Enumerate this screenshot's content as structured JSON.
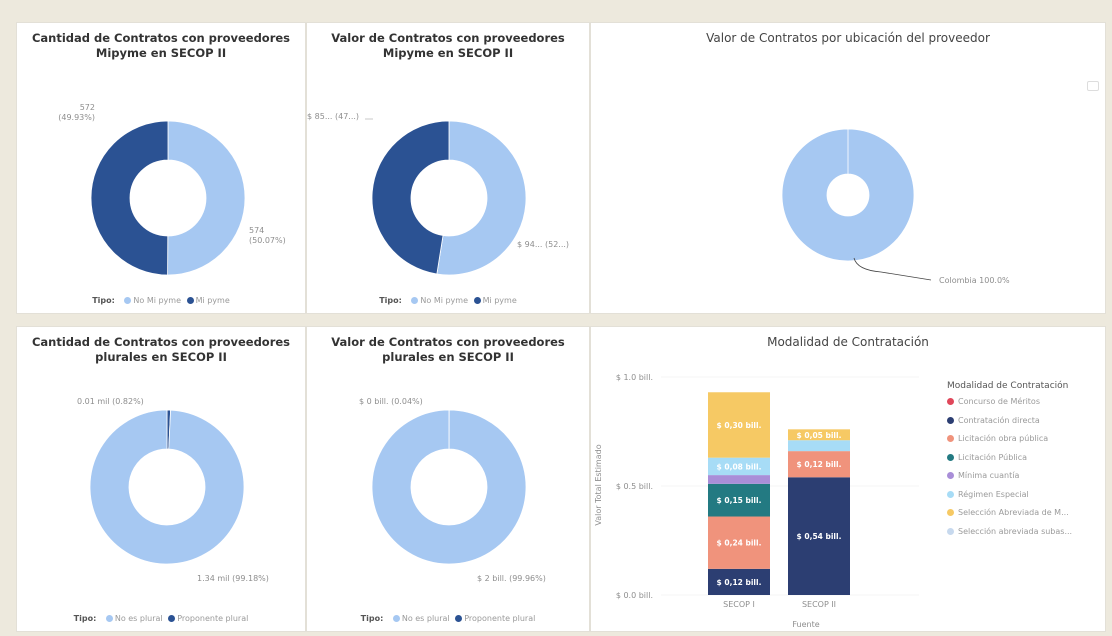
{
  "panels": {
    "mipyme_count": {
      "title": "Cantidad de Contratos con proveedores\nMipyme en SECOP II",
      "label_mi": "572\n(49.93%)",
      "label_no": "574\n(50.07%)",
      "legend_title": "Tipo:",
      "legend_items": [
        "No Mi pyme",
        "Mi pyme"
      ]
    },
    "mipyme_value": {
      "title": "Valor de Contratos con proveedores\nMipyme en SECOP II",
      "label_mi": "$ 85... (47...)",
      "label_no": "$ 94... (52...)",
      "legend_title": "Tipo:",
      "legend_items": [
        "No Mi pyme",
        "Mi pyme"
      ]
    },
    "ubicacion": {
      "title": "Valor de Contratos por ubicación del proveedor",
      "label": "Colombia 100.0%"
    },
    "plural_count": {
      "title": "Cantidad de Contratos con proveedores\nplurales en SECOP II",
      "label_plural": "0.01 mil (0.82%)",
      "label_no": "1.34 mil (99.18%)",
      "legend_title": "Tipo:",
      "legend_items": [
        "No es plural",
        "Proponente plural"
      ]
    },
    "plural_value": {
      "title": "Valor de Contratos con proveedores\nplurales en SECOP II",
      "label_plural": "$ 0 bill. (0.04%)",
      "label_no": "$ 2 bill. (99.96%)",
      "legend_title": "Tipo:",
      "legend_items": [
        "No es plural",
        "Proponente plural"
      ]
    },
    "modalidad": {
      "title": "Modalidad de Contratación",
      "ylabel": "Valor Total Estimado",
      "xlabel": "Fuente",
      "yticks": [
        "$ 1.0 bill.",
        "$ 0.5 bill.",
        "$ 0.0 bill."
      ],
      "legend_title": "Modalidad de Contratación",
      "legend_items": [
        "Concurso de Méritos",
        "Contratación directa",
        "Licitación obra pública",
        "Licitación Pública",
        "Mínima cuantía",
        "Régimen Especial",
        "Selección Abreviada de M...",
        "Selección abreviada subas..."
      ]
    }
  },
  "colors": {
    "no_mipyme": "#a6c8f2",
    "mipyme": "#2b5293",
    "concurso": "#e0475a",
    "directa": "#2c3e72",
    "obra": "#f0937c",
    "licitacion": "#237a82",
    "minima": "#a98ed8",
    "regimen": "#a7dcf6",
    "seleccion_m": "#f6c964",
    "seleccion_sub": "#c7d9ee"
  },
  "chart_data": [
    {
      "type": "pie",
      "title": "Cantidad de Contratos con proveedores Mipyme en SECOP II",
      "labels": [
        "No Mi pyme",
        "Mi pyme"
      ],
      "values": [
        574,
        572
      ],
      "percent": [
        50.07,
        49.93
      ]
    },
    {
      "type": "pie",
      "title": "Valor de Contratos con proveedores Mipyme en SECOP II",
      "labels": [
        "No Mi pyme",
        "Mi pyme"
      ],
      "percent": [
        52,
        47
      ]
    },
    {
      "type": "pie",
      "title": "Valor de Contratos por ubicación del proveedor",
      "labels": [
        "Colombia"
      ],
      "percent": [
        100.0
      ]
    },
    {
      "type": "pie",
      "title": "Cantidad de Contratos con proveedores plurales en SECOP II",
      "labels": [
        "No es plural",
        "Proponente plural"
      ],
      "values": [
        1.34,
        0.01
      ],
      "percent": [
        99.18,
        0.82
      ]
    },
    {
      "type": "pie",
      "title": "Valor de Contratos con proveedores plurales en SECOP II",
      "labels": [
        "No es plural",
        "Proponente plural"
      ],
      "values": [
        2,
        0
      ],
      "percent": [
        99.96,
        0.04
      ]
    },
    {
      "type": "bar",
      "stacked": true,
      "title": "Modalidad de Contratación",
      "xlabel": "Fuente",
      "ylabel": "Valor Total Estimado",
      "categories": [
        "SECOP I",
        "SECOP II"
      ],
      "ylim": [
        0,
        1.0
      ],
      "series": [
        {
          "name": "Contratación directa",
          "color": "#2c3e72",
          "values": [
            0.12,
            0.54
          ],
          "labels": [
            "$ 0,12 bill.",
            "$ 0,54 bill."
          ]
        },
        {
          "name": "Licitación obra pública",
          "color": "#f0937c",
          "values": [
            0.24,
            0.12
          ],
          "labels": [
            "$ 0,24 bill.",
            "$ 0,12 bill."
          ]
        },
        {
          "name": "Licitación Pública",
          "color": "#237a82",
          "values": [
            0.15,
            0
          ],
          "labels": [
            "$ 0,15 bill.",
            ""
          ]
        },
        {
          "name": "Mínima cuantía",
          "color": "#a98ed8",
          "values": [
            0.04,
            0
          ],
          "labels": [
            "",
            ""
          ]
        },
        {
          "name": "Régimen Especial",
          "color": "#a7dcf6",
          "values": [
            0.08,
            0.05
          ],
          "labels": [
            "$ 0,08 bill.",
            ""
          ]
        },
        {
          "name": "Selección Abreviada de M...",
          "color": "#f6c964",
          "values": [
            0.3,
            0.05
          ],
          "labels": [
            "$ 0,30 bill.",
            "$ 0,05 bill."
          ]
        }
      ]
    }
  ]
}
